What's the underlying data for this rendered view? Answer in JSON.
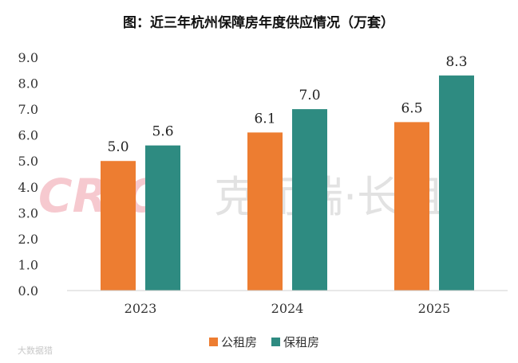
{
  "chart_data": {
    "type": "bar",
    "title": "图：近三年杭州保障房年度供应情况（万套）",
    "categories": [
      "2023",
      "2024",
      "2025"
    ],
    "series": [
      {
        "name": "公租房",
        "color": "#ED7D31",
        "values": [
          5.0,
          6.1,
          6.5
        ]
      },
      {
        "name": "保租房",
        "color": "#2E8B81",
        "values": [
          5.6,
          7.0,
          8.3
        ]
      }
    ],
    "yticks": [
      "0.0",
      "1.0",
      "2.0",
      "3.0",
      "4.0",
      "5.0",
      "6.0",
      "7.0",
      "8.0",
      "9.0"
    ],
    "ylim": [
      0,
      9
    ],
    "grid": false,
    "legend": "bottom"
  },
  "watermark": {
    "latin": "CRIC",
    "cn": "克而瑞·长租"
  },
  "corner_mark": "大数据猎"
}
